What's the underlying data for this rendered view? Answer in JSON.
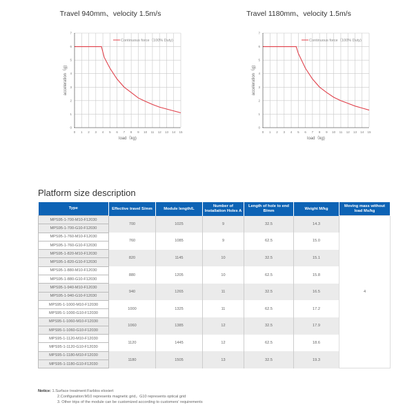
{
  "chart_data": [
    {
      "type": "line",
      "title": "Travel 940mm、velocity 1.5m/s",
      "xlabel": "load（kg)",
      "ylabel": "acceleration（g)",
      "xlim": [
        0,
        15
      ],
      "ylim": [
        0,
        7
      ],
      "grid": true,
      "legend": "top-right",
      "xticks": [
        0,
        1,
        2,
        3,
        4,
        5,
        6,
        7,
        8,
        9,
        10,
        11,
        12,
        13,
        14,
        15
      ],
      "yticks": [
        0,
        1,
        2,
        3,
        4,
        5,
        6,
        7
      ],
      "series": [
        {
          "name": "Continuous force（100% Duty)",
          "color": "#e0404a",
          "x": [
            0,
            3.8,
            4.2,
            5,
            6,
            7,
            8,
            9,
            10,
            11,
            12,
            13,
            14,
            15
          ],
          "y": [
            6,
            6,
            5.2,
            4.4,
            3.6,
            3.0,
            2.6,
            2.2,
            1.95,
            1.72,
            1.52,
            1.38,
            1.24,
            1.1
          ]
        }
      ]
    },
    {
      "type": "line",
      "title": "Travel 1180mm、velocity 1.5m/s",
      "xlabel": "load（kg)",
      "ylabel": "acceleration（g)",
      "xlim": [
        0,
        15
      ],
      "ylim": [
        0,
        7
      ],
      "grid": true,
      "legend": "top-right",
      "xticks": [
        0,
        1,
        2,
        3,
        4,
        5,
        6,
        7,
        8,
        9,
        10,
        11,
        12,
        13,
        14,
        15
      ],
      "yticks": [
        0,
        1,
        2,
        3,
        4,
        5,
        6,
        7
      ],
      "series": [
        {
          "name": "Continuous force（100% Duty)",
          "color": "#e0404a",
          "x": [
            0,
            4.7,
            5,
            6,
            7,
            8,
            9,
            10,
            11,
            12,
            13,
            14,
            15
          ],
          "y": [
            6,
            6,
            5.5,
            4.4,
            3.6,
            3.0,
            2.6,
            2.25,
            2.0,
            1.8,
            1.6,
            1.45,
            1.3
          ]
        }
      ]
    }
  ],
  "section_title": "Platform size description",
  "table": {
    "headers": [
      "Type",
      "Effective travel S/mm",
      "Module length/L",
      "Number of Installation Holes A",
      "Length of hole to end B/mm",
      "Weight M/kg",
      "Moving mass without load Ms/kg"
    ],
    "groups": [
      {
        "types": [
          "MPS95-1-700-M10-F12030",
          "MPS95-1-700-G10-F12030"
        ],
        "travel": "700",
        "length": "1025",
        "holes": "9",
        "hole_end": "32.5",
        "weight": "14.3"
      },
      {
        "types": [
          "MPS95-1-760-M10-F12030",
          "MPS95-1-760-G10-F12030"
        ],
        "travel": "760",
        "length": "1085",
        "holes": "9",
        "hole_end": "62.5",
        "weight": "15.0"
      },
      {
        "types": [
          "MPS95-1-820-M10-F12030",
          "MPS95-1-820-G10-F12030"
        ],
        "travel": "820",
        "length": "1145",
        "holes": "10",
        "hole_end": "32.5",
        "weight": "15.1"
      },
      {
        "types": [
          "MPS95-1-880-M10-F12030",
          "MPS95-1-880-G10-F12030"
        ],
        "travel": "880",
        "length": "1205",
        "holes": "10",
        "hole_end": "62.5",
        "weight": "15.8"
      },
      {
        "types": [
          "MPS95-1-940-M10-F12030",
          "MPS95-1-940-G10-F12030"
        ],
        "travel": "940",
        "length": "1265",
        "holes": "11",
        "hole_end": "32.5",
        "weight": "16.5"
      },
      {
        "types": [
          "MPS95-1-1000-M10-F12030",
          "MPS95-1-1000-G10-F12030"
        ],
        "travel": "1000",
        "length": "1325",
        "holes": "11",
        "hole_end": "62.5",
        "weight": "17.2"
      },
      {
        "types": [
          "MPS95-1-1060-M10-F12030",
          "MPS95-1-1060-G10-F12030"
        ],
        "travel": "1060",
        "length": "1385",
        "holes": "12",
        "hole_end": "32.5",
        "weight": "17.9"
      },
      {
        "types": [
          "MPS95-1-1120-M10-F12030",
          "MPS95-1-1120-G10-F12030"
        ],
        "travel": "1120",
        "length": "1445",
        "holes": "12",
        "hole_end": "62.5",
        "weight": "18.6"
      },
      {
        "types": [
          "MPS95-1-1180-M10-F12030",
          "MPS95-1-1180-G10-F12030"
        ],
        "travel": "1180",
        "length": "1505",
        "holes": "13",
        "hole_end": "32.5",
        "weight": "19.3"
      }
    ],
    "moving_mass": "4"
  },
  "notice": {
    "label": "Notice:",
    "lines": [
      "1.Surface treatment:Farblos eloxiert",
      "2.Configuration:M10 represents magnetic grid，G10 represents optical grid",
      "3. Other trips of the module can be customized according to customers' requirements"
    ]
  }
}
